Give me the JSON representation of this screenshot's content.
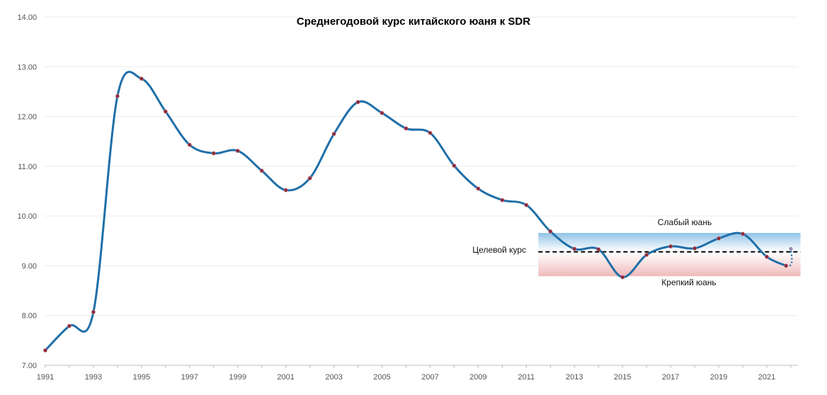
{
  "chart_data": {
    "type": "line",
    "title": "Среднегодовой курс китайского юаня к SDR",
    "xlabel": "",
    "ylabel": "",
    "ylim": [
      7.0,
      14.0
    ],
    "xlim": [
      1991,
      2022
    ],
    "y_ticks": [
      "7.00",
      "8.00",
      "9.00",
      "10.00",
      "11.00",
      "12.00",
      "13.00",
      "14.00"
    ],
    "x_ticks": [
      "1991",
      "1993",
      "1995",
      "1997",
      "1999",
      "2001",
      "2003",
      "2005",
      "2007",
      "2009",
      "2011",
      "2013",
      "2015",
      "2017",
      "2019",
      "2021"
    ],
    "grid": true,
    "series": [
      {
        "color": "#1f6fa8",
        "marker_color": "#8b2a3a",
        "points": [
          [
            1991,
            7.3
          ],
          [
            1992,
            7.79
          ],
          [
            1993,
            8.07
          ],
          [
            1994,
            12.41
          ],
          [
            1995,
            12.76
          ],
          [
            1996,
            12.1
          ],
          [
            1997,
            11.43
          ],
          [
            1998,
            11.26
          ],
          [
            1999,
            11.31
          ],
          [
            2000,
            10.91
          ],
          [
            2001,
            10.52
          ],
          [
            2002,
            10.76
          ],
          [
            2003,
            11.65
          ],
          [
            2004,
            12.29
          ],
          [
            2005,
            12.07
          ],
          [
            2006,
            11.76
          ],
          [
            2007,
            11.67
          ],
          [
            2008,
            11.01
          ],
          [
            2009,
            10.55
          ],
          [
            2010,
            10.32
          ],
          [
            2011,
            10.22
          ],
          [
            2012,
            9.69
          ],
          [
            2013,
            9.34
          ],
          [
            2014,
            9.33
          ],
          [
            2015,
            8.77
          ],
          [
            2016,
            9.22
          ],
          [
            2017,
            9.39
          ],
          [
            2018,
            9.35
          ],
          [
            2019,
            9.55
          ],
          [
            2020,
            9.64
          ],
          [
            2021,
            9.18
          ],
          [
            2021.8,
            9.0
          ]
        ],
        "dotted_extension": [
          [
            2021.8,
            9.0
          ],
          [
            2022,
            9.34
          ]
        ]
      }
    ],
    "target_band": {
      "x_from": 2011.5,
      "x_to": 2022.4,
      "upper": 9.66,
      "lower": 8.79,
      "target": 9.28,
      "upper_color": "#8fc3e6",
      "lower_color": "#efb9b9"
    },
    "annotations": {
      "weak": "Слабый юань",
      "target": "Целевой курс",
      "strong": "Крепкий юань"
    }
  }
}
